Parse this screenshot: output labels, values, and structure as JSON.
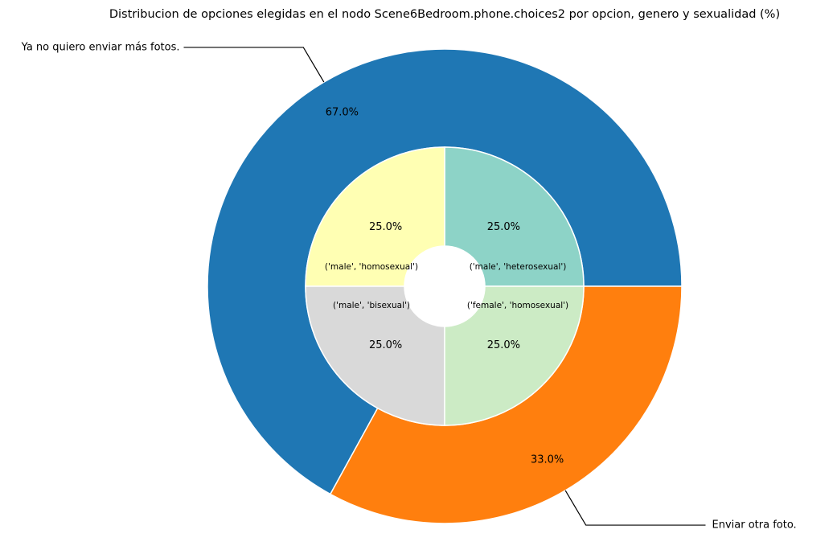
{
  "chart_data": {
    "type": "pie",
    "title": "Distribucion de opciones elegidas en el nodo Scene6Bedroom.phone.choices2 por opcion, genero y sexualidad (%)",
    "outer": {
      "labels": [
        "Ya no quiero enviar más fotos.",
        "Enviar otra foto."
      ],
      "values": [
        67.0,
        33.0
      ],
      "value_labels": [
        "67.0%",
        "33.0%"
      ],
      "colors": [
        "#1f77b4",
        "#ff7f0e"
      ]
    },
    "inner": {
      "labels": [
        "('male', 'heterosexual')",
        "('male', 'homosexual')",
        "('male', 'bisexual')",
        "('female', 'homosexual')"
      ],
      "values": [
        25.0,
        25.0,
        25.0,
        25.0
      ],
      "value_labels": [
        "25.0%",
        "25.0%",
        "25.0%",
        "25.0%"
      ],
      "colors": [
        "#8dd3c7",
        "#ffffb3",
        "#d9d9d9",
        "#ccebc5"
      ]
    }
  }
}
